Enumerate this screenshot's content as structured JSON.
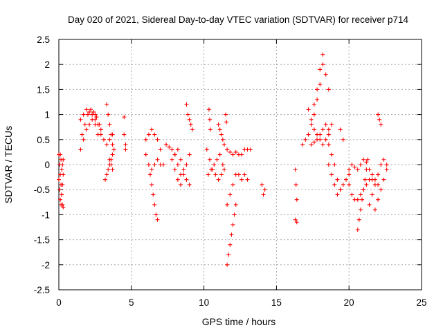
{
  "chart_data": {
    "type": "scatter",
    "title": "Day 020 of 2021, Sidereal Day-to-day VTEC variation (SDTVAR) for receiver p714",
    "xlabel": "GPS time / hours",
    "ylabel": "SDTVAR / TECUs",
    "xlim": [
      0,
      25
    ],
    "ylim": [
      -2.5,
      2.5
    ],
    "xticks": [
      0,
      5,
      10,
      15,
      20,
      25
    ],
    "xtick_labels": [
      "0",
      "5",
      "10",
      "15",
      "20",
      "25"
    ],
    "yticks": [
      -2.5,
      -2,
      -1.5,
      -1,
      -0.5,
      0,
      0.5,
      1,
      1.5,
      2,
      2.5
    ],
    "ytick_labels": [
      "-2.5",
      "-2",
      "-1.5",
      "-1",
      "-0.5",
      "0",
      "0.5",
      "1",
      "1.5",
      "2",
      "2.5"
    ],
    "grid": true,
    "marker": "+",
    "color": "#ff0000",
    "series": [
      {
        "name": "SDTVAR",
        "segments": [
          {
            "x": [
              0.0,
              0.05,
              0.1,
              0.15,
              0.2,
              0.25,
              0.3
            ],
            "y": [
              -0.3,
              -0.5,
              -0.7,
              -0.8,
              -0.6,
              -0.4,
              -0.2
            ]
          },
          {
            "x": [
              0.0,
              0.05,
              0.1,
              0.15,
              0.2,
              0.25,
              0.3
            ],
            "y": [
              0.2,
              0.0,
              -0.2,
              -0.4,
              -0.6,
              -0.8,
              -0.85
            ]
          },
          {
            "x": [
              0.1,
              0.15,
              0.2,
              0.25,
              0.3
            ],
            "y": [
              0.2,
              0.1,
              -0.1,
              0.0,
              0.1
            ]
          },
          {
            "x": [
              1.5,
              1.7,
              1.9,
              2.1,
              2.3,
              2.5,
              2.7
            ],
            "y": [
              0.3,
              0.5,
              0.7,
              0.8,
              0.9,
              0.8,
              0.6
            ]
          },
          {
            "x": [
              1.5,
              1.7,
              1.9,
              2.1,
              2.3,
              2.5,
              2.7,
              2.9
            ],
            "y": [
              0.9,
              1.0,
              1.1,
              1.05,
              1.0,
              0.9,
              0.8,
              0.7
            ]
          },
          {
            "x": [
              1.6,
              1.8,
              2.0,
              2.2,
              2.4,
              2.6,
              2.8
            ],
            "y": [
              0.6,
              0.8,
              1.0,
              1.1,
              1.05,
              0.95,
              0.8
            ]
          },
          {
            "x": [
              2.5,
              2.7,
              2.9,
              3.1,
              3.3,
              3.5,
              3.7
            ],
            "y": [
              1.0,
              0.8,
              0.6,
              0.5,
              0.4,
              0.5,
              0.6
            ]
          },
          {
            "x": [
              3.2,
              3.3,
              3.4,
              3.5,
              3.6,
              3.7
            ],
            "y": [
              -0.3,
              -0.2,
              -0.1,
              0.0,
              0.1,
              0.2
            ]
          },
          {
            "x": [
              3.3,
              3.4,
              3.5,
              3.6,
              3.7,
              3.8
            ],
            "y": [
              1.2,
              1.0,
              0.8,
              0.6,
              0.4,
              0.3
            ]
          },
          {
            "x": [
              3.5,
              3.6,
              3.7
            ],
            "y": [
              0.1,
              0.0,
              -0.1
            ]
          },
          {
            "x": [
              4.5,
              4.5,
              4.6,
              4.6
            ],
            "y": [
              0.95,
              0.6,
              0.4,
              0.3
            ]
          },
          {
            "x": [
              6.0,
              6.2,
              6.4,
              6.6,
              6.8,
              7.0,
              7.2
            ],
            "y": [
              0.5,
              0.6,
              0.7,
              0.6,
              0.5,
              0.3,
              0.0
            ]
          },
          {
            "x": [
              6.2,
              6.3,
              6.4,
              6.5,
              6.6,
              6.7,
              6.8
            ],
            "y": [
              0.0,
              -0.2,
              -0.4,
              -0.6,
              -0.8,
              -1.0,
              -1.1
            ]
          },
          {
            "x": [
              6.0,
              6.2,
              6.4,
              6.6,
              6.8,
              7.0
            ],
            "y": [
              0.2,
              0.0,
              -0.1,
              0.0,
              0.1,
              0.0
            ]
          },
          {
            "x": [
              7.4,
              7.6,
              7.8,
              8.0,
              8.2,
              8.4
            ],
            "y": [
              0.4,
              0.35,
              0.3,
              0.2,
              0.0,
              -0.2
            ]
          },
          {
            "x": [
              7.8,
              8.0,
              8.2,
              8.4,
              8.6,
              8.8,
              9.0
            ],
            "y": [
              0.1,
              -0.1,
              -0.3,
              -0.4,
              -0.2,
              0.0,
              0.2
            ]
          },
          {
            "x": [
              8.0,
              8.2,
              8.4,
              8.6,
              8.8,
              9.0
            ],
            "y": [
              0.2,
              0.3,
              0.1,
              -0.1,
              -0.3,
              -0.4
            ]
          },
          {
            "x": [
              8.8,
              8.9,
              9.0,
              9.1,
              9.2
            ],
            "y": [
              1.2,
              1.0,
              0.9,
              0.8,
              0.7
            ]
          },
          {
            "x": [
              10.2,
              10.4,
              10.6,
              10.8,
              11.0,
              11.2,
              11.4
            ],
            "y": [
              0.3,
              0.1,
              -0.1,
              -0.2,
              -0.3,
              -0.2,
              -0.1
            ]
          },
          {
            "x": [
              10.3,
              10.5,
              10.7,
              10.9,
              11.1,
              11.3
            ],
            "y": [
              -0.2,
              -0.1,
              0.0,
              0.1,
              0.2,
              0.0
            ]
          },
          {
            "x": [
              10.35,
              10.4,
              10.45
            ],
            "y": [
              1.1,
              0.9,
              0.7
            ]
          },
          {
            "x": [
              11.0,
              11.1,
              11.2,
              11.3,
              11.4
            ],
            "y": [
              0.8,
              0.7,
              0.6,
              0.5,
              0.4
            ]
          },
          {
            "x": [
              11.6,
              11.7,
              11.8,
              11.9,
              12.0,
              12.1,
              12.2
            ],
            "y": [
              -2.0,
              -1.8,
              -1.6,
              -1.4,
              -1.2,
              -1.0,
              -0.8
            ]
          },
          {
            "x": [
              11.6,
              11.8,
              12.0,
              12.2,
              12.4,
              12.6,
              12.8,
              13.0
            ],
            "y": [
              -0.8,
              -0.6,
              -0.4,
              -0.2,
              -0.2,
              -0.3,
              -0.2,
              -0.3
            ]
          },
          {
            "x": [
              11.6,
              11.8,
              12.0,
              12.2,
              12.4,
              12.6,
              12.8,
              13.0,
              13.2
            ],
            "y": [
              0.3,
              0.25,
              0.2,
              0.25,
              0.2,
              0.2,
              0.3,
              0.3,
              0.3
            ]
          },
          {
            "x": [
              11.5,
              11.55
            ],
            "y": [
              1.0,
              0.85
            ]
          },
          {
            "x": [
              14.0,
              14.1,
              14.2
            ],
            "y": [
              -0.4,
              -0.6,
              -0.5
            ]
          },
          {
            "x": [
              16.3,
              16.4
            ],
            "y": [
              -1.1,
              -1.15
            ]
          },
          {
            "x": [
              16.3,
              16.35,
              16.4
            ],
            "y": [
              -0.1,
              -0.4,
              -0.7
            ]
          },
          {
            "x": [
              16.8,
              17.0,
              17.2,
              17.4,
              17.6,
              17.8,
              18.0,
              18.2
            ],
            "y": [
              0.4,
              0.5,
              0.6,
              0.8,
              1.2,
              1.5,
              1.9,
              2.2
            ]
          },
          {
            "x": [
              17.6,
              17.8,
              18.0,
              18.2,
              18.4,
              18.6
            ],
            "y": [
              1.0,
              1.3,
              1.6,
              2.0,
              1.8,
              1.5
            ]
          },
          {
            "x": [
              17.2,
              17.4,
              17.6,
              17.8,
              18.0,
              18.2,
              18.4,
              18.6,
              18.8
            ],
            "y": [
              1.1,
              0.9,
              0.7,
              0.6,
              0.5,
              0.4,
              0.5,
              0.6,
              0.8
            ]
          },
          {
            "x": [
              17.4,
              17.6,
              17.8,
              18.0,
              18.2,
              18.4,
              18.6
            ],
            "y": [
              0.4,
              0.45,
              0.5,
              0.6,
              0.7,
              0.8,
              0.7
            ]
          },
          {
            "x": [
              18.6,
              18.8,
              19.0,
              19.2,
              19.4,
              19.6,
              19.8,
              20.0
            ],
            "y": [
              0.4,
              0.2,
              0.0,
              -0.3,
              -0.5,
              -0.4,
              -0.3,
              -0.2
            ]
          },
          {
            "x": [
              18.6,
              18.8,
              19.0,
              19.2,
              19.4
            ],
            "y": [
              0.0,
              -0.2,
              -0.4,
              -0.6,
              -0.5
            ]
          },
          {
            "x": [
              19.4,
              19.6
            ],
            "y": [
              0.7,
              0.5
            ]
          },
          {
            "x": [
              20.0,
              20.2,
              20.4,
              20.6,
              20.8,
              21.0,
              21.2,
              21.4,
              21.6,
              21.8,
              22.0
            ],
            "y": [
              -0.4,
              -0.6,
              -0.7,
              -0.7,
              -0.6,
              -0.5,
              -0.4,
              -0.3,
              -0.2,
              -0.3,
              -0.4
            ]
          },
          {
            "x": [
              20.0,
              20.2,
              20.4,
              20.6,
              20.8,
              21.0,
              21.2,
              21.4,
              21.6
            ],
            "y": [
              -0.1,
              0.0,
              -0.05,
              -0.1,
              0.0,
              0.1,
              0.05,
              -0.1,
              -0.3
            ]
          },
          {
            "x": [
              20.6,
              20.7,
              20.8,
              20.9,
              21.0,
              21.1,
              21.2,
              21.3
            ],
            "y": [
              -1.3,
              -1.1,
              -0.9,
              -0.7,
              -0.5,
              -0.3,
              -0.1,
              0.1
            ]
          },
          {
            "x": [
              21.4,
              21.6,
              21.8,
              22.0,
              22.2,
              22.4,
              22.6
            ],
            "y": [
              -0.8,
              -0.6,
              -0.4,
              -0.2,
              0.0,
              0.1,
              0.0
            ]
          },
          {
            "x": [
              21.8,
              22.0,
              22.2,
              22.4,
              22.6
            ],
            "y": [
              -0.9,
              -0.7,
              -0.5,
              -0.3,
              -0.1
            ]
          },
          {
            "x": [
              22.0,
              22.1,
              22.2
            ],
            "y": [
              1.0,
              0.9,
              0.8
            ]
          }
        ]
      }
    ]
  }
}
